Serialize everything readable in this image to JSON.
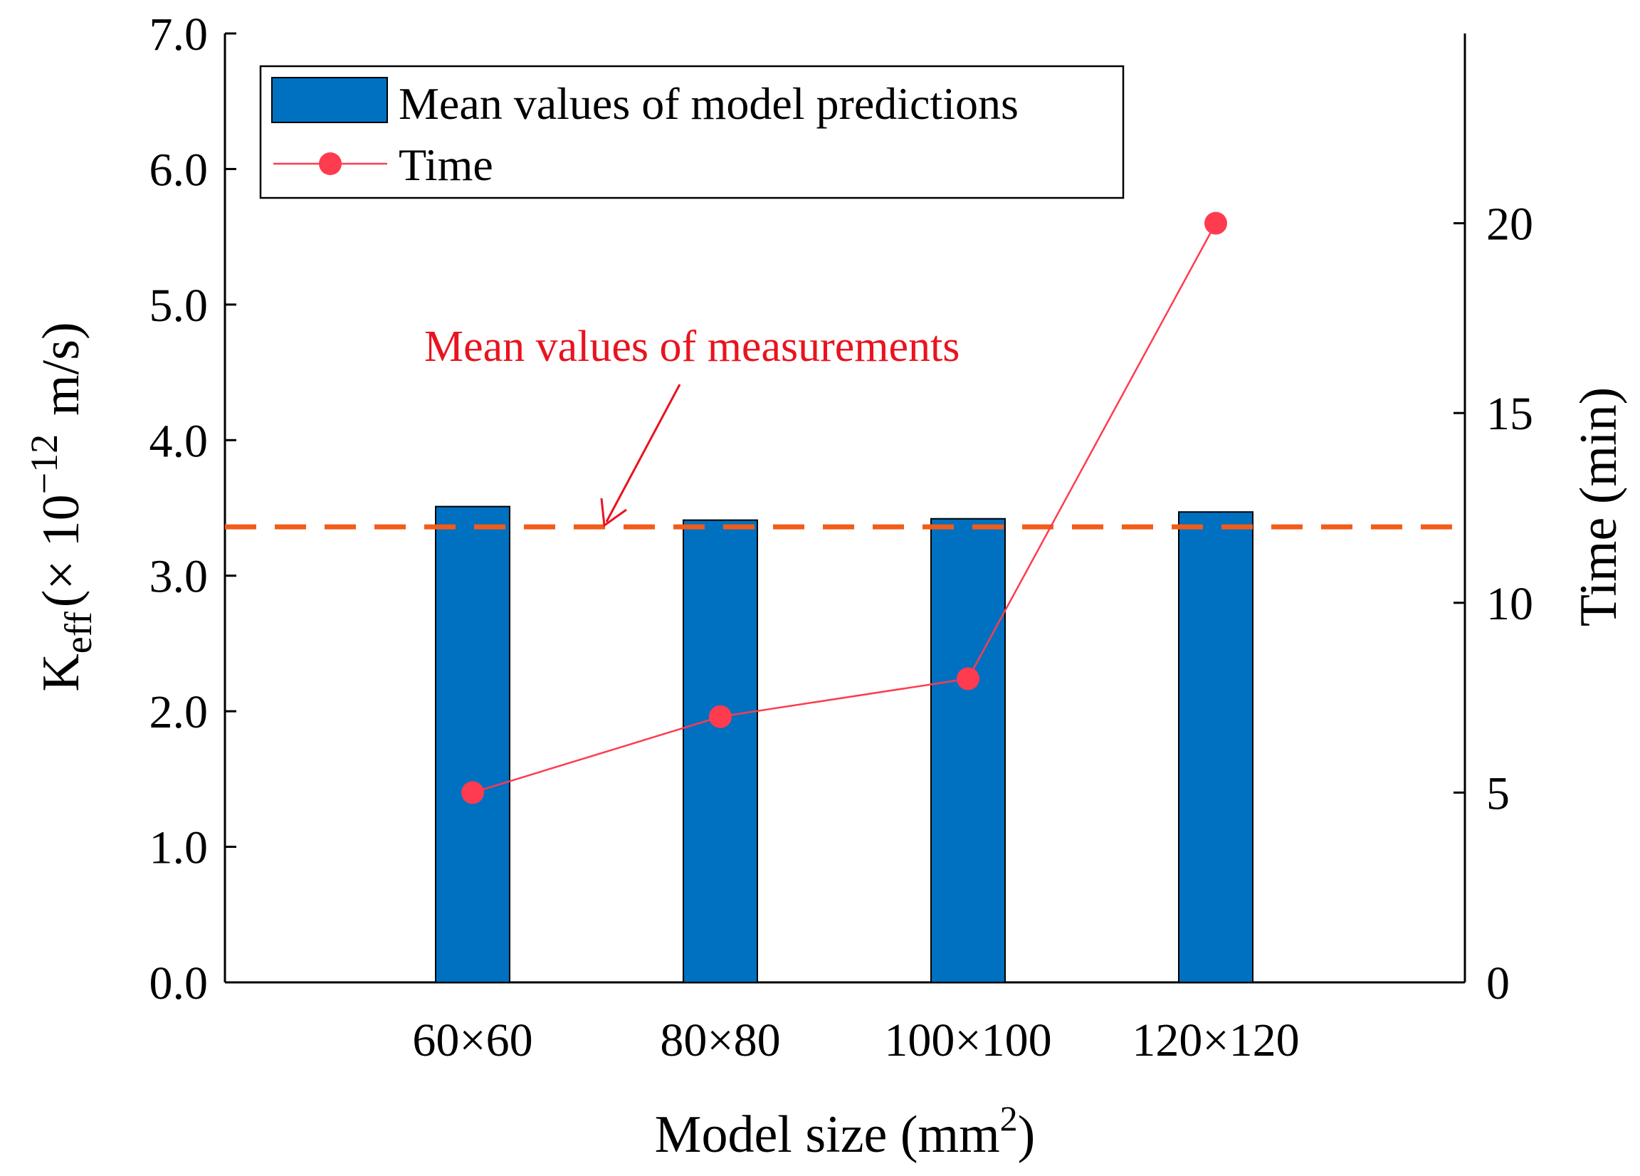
{
  "colors": {
    "bar": "#0070C0",
    "time_line": "#FF3B4F",
    "measurement_line": "#F25C19",
    "annotation": "#E8141E",
    "axis": "#000000"
  },
  "chart_data": {
    "type": "bar",
    "categories": [
      "60×60",
      "80×80",
      "100×100",
      "120×120"
    ],
    "series": [
      {
        "name": "Mean values of model predictions",
        "axis": "left",
        "kind": "bar",
        "values": [
          3.51,
          3.41,
          3.42,
          3.47
        ]
      },
      {
        "name": "Time",
        "axis": "right",
        "kind": "line",
        "marker": "circle",
        "values": [
          5,
          7,
          8,
          20
        ]
      }
    ],
    "reference_line": {
      "label": "Mean values of measurements",
      "value": 3.36,
      "axis": "left",
      "style": "dashed"
    },
    "xlabel": {
      "text": "Model size (mm",
      "superscript": "2",
      "suffix": ")"
    },
    "ylabel_left": {
      "main": "K",
      "subscript": "eff",
      "unit_prefix": "(× 10",
      "exponent": "−12",
      "unit_suffix": "m/s)"
    },
    "ylabel_right": "Time (min)",
    "ylim_left": [
      0,
      7
    ],
    "ylim_right": [
      0,
      25
    ],
    "yticks_left": [
      "0.0",
      "1.0",
      "2.0",
      "3.0",
      "4.0",
      "5.0",
      "6.0",
      "7.0"
    ],
    "yticks_right": [
      "0",
      "5",
      "10",
      "15",
      "20"
    ],
    "legend": {
      "position": "top-left",
      "entries": [
        "Mean values of model predictions",
        "Time"
      ]
    }
  }
}
